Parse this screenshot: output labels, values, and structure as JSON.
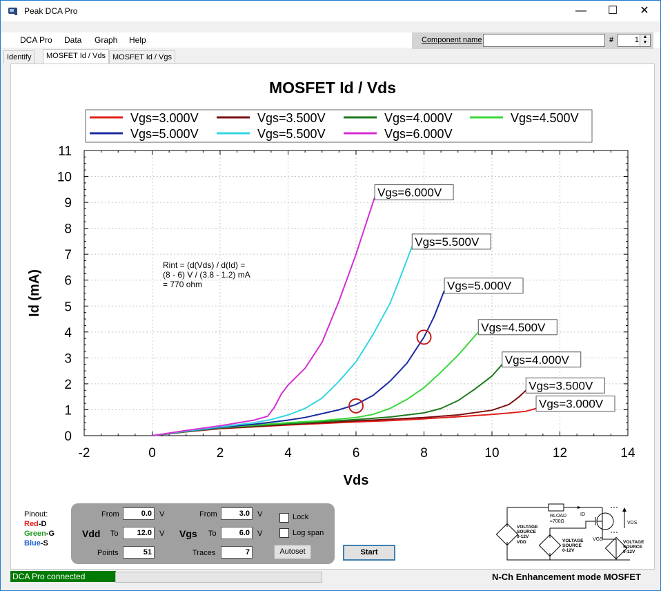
{
  "window": {
    "title": "Peak DCA Pro",
    "minimize": "—",
    "maximize": "☐",
    "close": "✕"
  },
  "menu": [
    "DCA Pro",
    "Data",
    "Graph",
    "Help"
  ],
  "component": {
    "label": "Component name",
    "value": "",
    "hash": "#",
    "index": "1"
  },
  "tabs": [
    {
      "label": "Identify",
      "active": false
    },
    {
      "label": "MOSFET Id / Vds",
      "active": true
    },
    {
      "label": "MOSFET Id / Vgs",
      "active": false
    }
  ],
  "chart_data": {
    "type": "line",
    "title": "MOSFET Id / Vds",
    "xlabel": "Vds",
    "ylabel": "Id (mA)",
    "xlim": [
      -2,
      14
    ],
    "ylim": [
      0,
      11
    ],
    "xticks": [
      -2,
      0,
      2,
      4,
      6,
      8,
      10,
      12,
      14
    ],
    "yticks": [
      0,
      1,
      2,
      3,
      4,
      5,
      6,
      7,
      8,
      9,
      10,
      11
    ],
    "grid": true,
    "legend_position": "top",
    "series": [
      {
        "name": "Vgs=3.000V",
        "color": "#e0201b",
        "x": [
          0,
          1,
          2,
          3,
          4,
          5,
          6,
          7,
          8,
          9,
          10,
          10.5,
          11,
          11.3
        ],
        "y": [
          0,
          0.15,
          0.27,
          0.34,
          0.41,
          0.47,
          0.53,
          0.58,
          0.65,
          0.73,
          0.82,
          0.87,
          0.94,
          1.05
        ]
      },
      {
        "name": "Vgs=3.500V",
        "color": "#7a1010",
        "x": [
          0,
          1,
          2,
          3,
          4,
          5,
          6,
          7,
          8,
          9,
          10,
          10.5,
          10.8,
          11.0
        ],
        "y": [
          0,
          0.15,
          0.28,
          0.35,
          0.43,
          0.5,
          0.57,
          0.63,
          0.7,
          0.8,
          0.98,
          1.2,
          1.5,
          1.75
        ]
      },
      {
        "name": "Vgs=4.000V",
        "color": "#1e7a1e",
        "x": [
          0,
          1,
          2,
          3,
          4,
          5,
          6,
          7,
          8,
          8.5,
          9,
          9.5,
          10,
          10.3
        ],
        "y": [
          0,
          0.16,
          0.3,
          0.38,
          0.46,
          0.54,
          0.62,
          0.72,
          0.88,
          1.05,
          1.35,
          1.8,
          2.3,
          2.75
        ]
      },
      {
        "name": "Vgs=4.500V",
        "color": "#3ad83a",
        "x": [
          0,
          1,
          2,
          3,
          4,
          5,
          6,
          6.5,
          7,
          7.5,
          8,
          8.5,
          9,
          9.6
        ],
        "y": [
          0,
          0.16,
          0.31,
          0.41,
          0.5,
          0.58,
          0.7,
          0.82,
          1.05,
          1.4,
          1.85,
          2.45,
          3.1,
          4.0
        ]
      },
      {
        "name": "Vgs=5.000V",
        "color": "#1b2aa0",
        "x": [
          0,
          1,
          2,
          3,
          4,
          4.5,
          5,
          5.5,
          6,
          6.5,
          7,
          7.5,
          8,
          8.3,
          8.6
        ],
        "y": [
          0,
          0.17,
          0.32,
          0.44,
          0.6,
          0.7,
          0.85,
          1.0,
          1.2,
          1.55,
          2.1,
          2.8,
          3.8,
          4.6,
          5.6
        ]
      },
      {
        "name": "Vgs=5.500V",
        "color": "#33d6e2",
        "x": [
          0,
          1,
          2,
          3,
          3.5,
          4,
          4.5,
          5,
          5.5,
          6,
          6.5,
          7,
          7.3,
          7.65
        ],
        "y": [
          0,
          0.18,
          0.34,
          0.5,
          0.62,
          0.8,
          1.05,
          1.45,
          2.1,
          2.85,
          3.9,
          5.1,
          6.1,
          7.3
        ]
      },
      {
        "name": "Vgs=6.000V",
        "color": "#d42fd4",
        "x": [
          0,
          1,
          2,
          3,
          3.4,
          3.6,
          3.8,
          4,
          4.5,
          5,
          5.5,
          6,
          6.3,
          6.55
        ],
        "y": [
          0,
          0.2,
          0.38,
          0.6,
          0.75,
          1.1,
          1.6,
          1.95,
          2.6,
          3.6,
          5.2,
          7.0,
          8.2,
          9.2
        ]
      }
    ],
    "end_labels": [
      "Vgs=6.000V",
      "Vgs=5.500V",
      "Vgs=5.000V",
      "Vgs=4.500V",
      "Vgs=4.000V",
      "Vgs=3.500V",
      "Vgs=3.000V"
    ],
    "markers": [
      {
        "x": 6,
        "y": 1.15
      },
      {
        "x": 8,
        "y": 3.8
      }
    ],
    "annotation": [
      "Rint = (d(Vds) / d(Id) =",
      "(8 - 6) V / (3.8 - 1.2) mA",
      "= 770 ohm"
    ]
  },
  "pinout": {
    "title": "Pinout:",
    "red": "Red",
    "red_pin": "-D",
    "green": "Green",
    "green_pin": "-G",
    "blue": "Blue",
    "blue_pin": "-S"
  },
  "controls": {
    "vdd_label": "Vdd",
    "vgs_label": "Vgs",
    "from": "From",
    "to": "To",
    "unit": "V",
    "vdd_from": "0.0",
    "vdd_to": "12.0",
    "vgs_from": "3.0",
    "vgs_to": "6.0",
    "points_label": "Points",
    "points": "51",
    "traces_label": "Traces",
    "traces": "7",
    "lock": "Lock",
    "log_span": "Log span",
    "autoset": "Autoset",
    "start": "Start"
  },
  "schematic": {
    "rload": "RLOAD",
    "rload_value": "≈700Ω",
    "id": "ID",
    "vgs": "VGS",
    "vds": "VDS",
    "src1": [
      "VOLTAGE",
      "SOURCE",
      "0-12V",
      "VDD"
    ],
    "src2": [
      "VOLTAGE",
      "SOURCE",
      "0-12V"
    ],
    "src3": [
      "VOLTAGE",
      "SOURCE",
      "0-12V"
    ]
  },
  "status": {
    "connection": "DCA Pro connected",
    "device": "N-Ch Enhancement mode MOSFET"
  },
  "colors": {
    "connected": "#007a00",
    "pin_red": "#e0201b",
    "pin_green": "#1e9a1e",
    "pin_blue": "#1b5fd0"
  }
}
